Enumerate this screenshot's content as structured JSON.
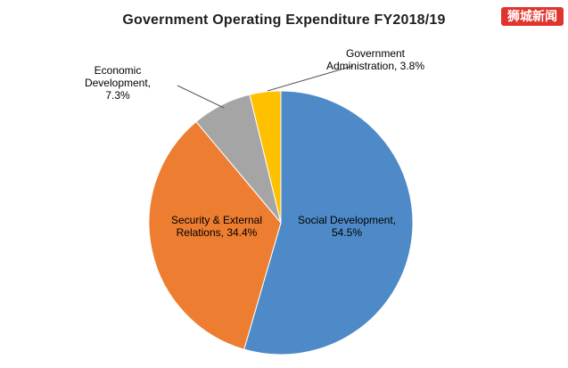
{
  "chart_data": {
    "type": "pie",
    "title": "Government Operating Expenditure FY2018/19",
    "categories": [
      "Social Development",
      "Security & External Relations",
      "Economic Development",
      "Government Administration"
    ],
    "values": [
      54.5,
      34.4,
      7.3,
      3.8
    ],
    "colors": [
      "#4E8AC8",
      "#ED7D31",
      "#A5A5A5",
      "#FFC000"
    ],
    "labels": [
      "Social Development, 54.5%",
      "Security & External Relations, 34.4%",
      "Economic Development, 7.3%",
      "Government Administration, 3.8%"
    ],
    "start_angle_deg": 0,
    "direction": "clockwise",
    "legend": "none",
    "data_label_format": "category, percent"
  },
  "watermark": {
    "text": "狮城新闻",
    "bg_color": "#E0352C",
    "text_color": "#FFFFFF"
  }
}
